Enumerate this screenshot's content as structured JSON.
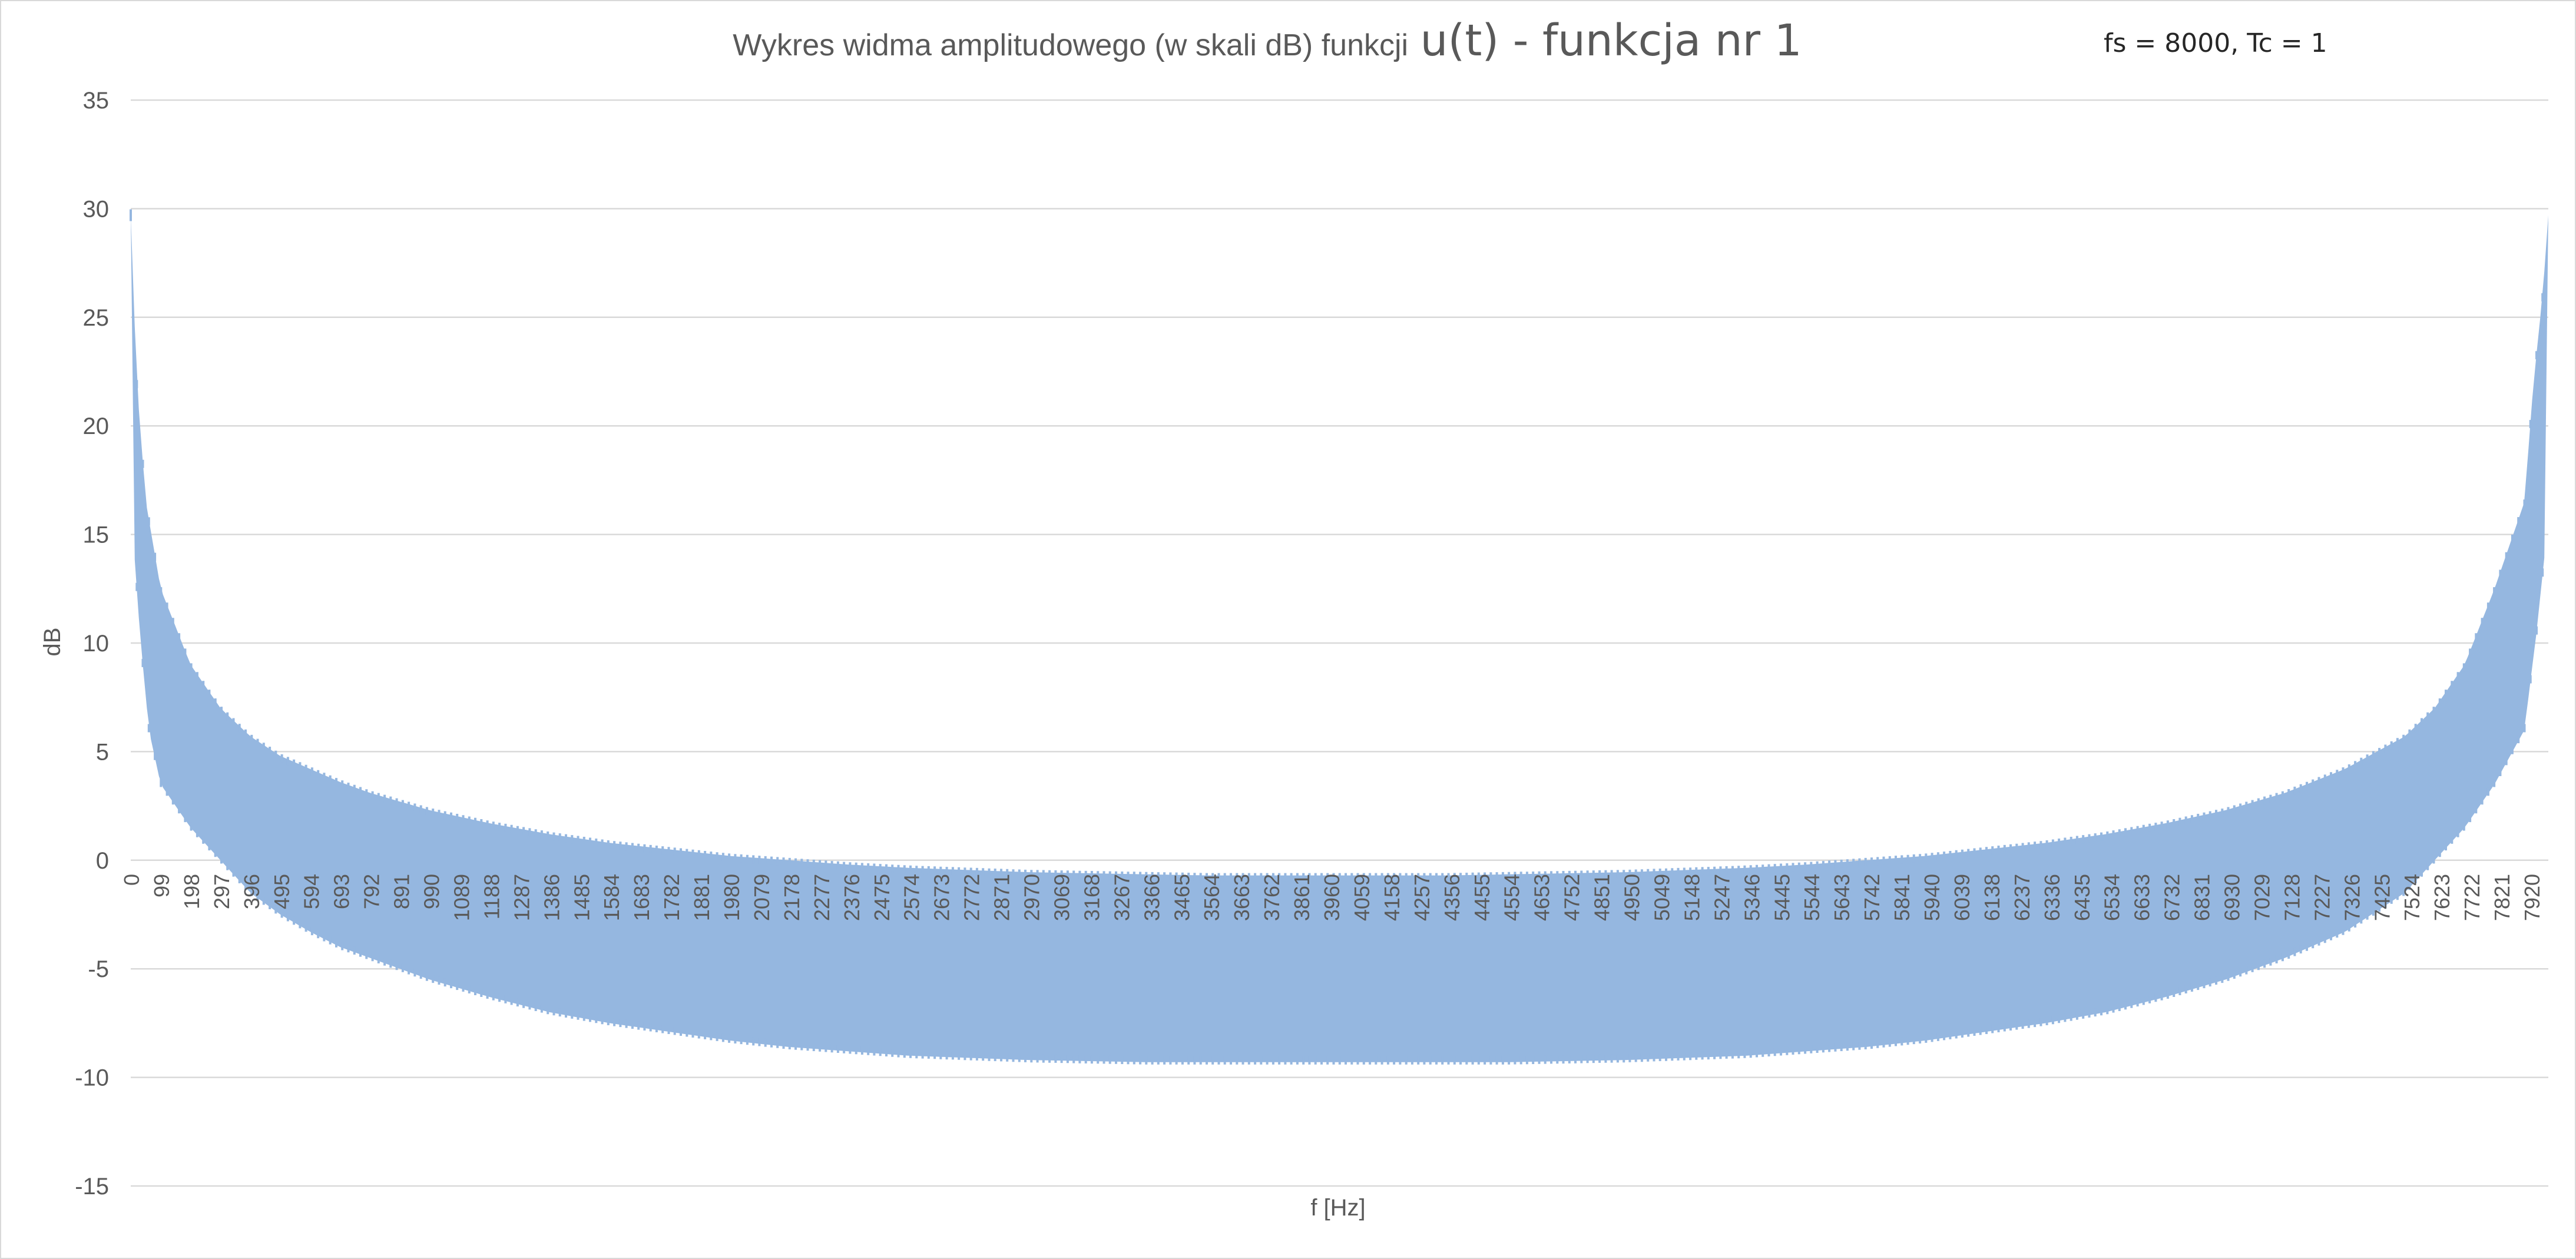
{
  "chart_data": {
    "type": "area",
    "title_part1": "Wykres widma amplitudowego (w skali dB) funkcji",
    "title_part2": "u(t) - funkcja nr 1",
    "annotation": "fs = 8000, Tc = 1",
    "xlabel": "f [Hz]",
    "ylabel": "dB",
    "ylim": [
      -15,
      35
    ],
    "yticks": [
      -15,
      -10,
      -5,
      0,
      5,
      10,
      15,
      20,
      25,
      30,
      35
    ],
    "xlim": [
      0,
      7999
    ],
    "x_tick_labels": [
      "0",
      "99",
      "198",
      "297",
      "396",
      "495",
      "594",
      "693",
      "792",
      "891",
      "990",
      "1089",
      "1188",
      "1287",
      "1386",
      "1485",
      "1584",
      "1683",
      "1782",
      "1881",
      "1980",
      "2079",
      "2178",
      "2277",
      "2376",
      "2475",
      "2574",
      "2673",
      "2772",
      "2871",
      "2970",
      "3069",
      "3168",
      "3267",
      "3366",
      "3465",
      "3564",
      "3663",
      "3762",
      "3861",
      "3960",
      "4059",
      "4158",
      "4257",
      "4356",
      "4455",
      "4554",
      "4653",
      "4752",
      "4851",
      "4950",
      "5049",
      "5148",
      "5247",
      "5346",
      "5445",
      "5544",
      "5643",
      "5742",
      "5841",
      "5940",
      "6039",
      "6138",
      "6237",
      "6336",
      "6435",
      "6534",
      "6633",
      "6732",
      "6831",
      "6930",
      "7029",
      "7128",
      "7227",
      "7326",
      "7425",
      "7524",
      "7623",
      "7722",
      "7821",
      "7920"
    ],
    "grid": true,
    "series": [
      {
        "color": "#95b7e0",
        "description_envelope": true,
        "upper_envelope": {
          "x": [
            0,
            20,
            50,
            99,
            198,
            297,
            396,
            495,
            594,
            693,
            792,
            891,
            990,
            1188,
            1386,
            1584,
            1782,
            1980,
            2178,
            2376,
            2574,
            2772,
            2970,
            3168,
            3366,
            3564,
            3762,
            3960,
            4158,
            4356,
            4554,
            4752,
            4950,
            5148,
            5346,
            5544,
            5742,
            5940,
            6138,
            6336,
            6534,
            6732,
            6930,
            7128,
            7326,
            7524,
            7623,
            7722,
            7821,
            7920,
            7950,
            7980,
            7999
          ],
          "y": [
            29.7,
            22,
            16.5,
            12.5,
            9,
            7,
            5.7,
            4.8,
            4.2,
            3.6,
            3.1,
            2.7,
            2.3,
            1.7,
            1.2,
            0.8,
            0.5,
            0.2,
            0,
            -0.2,
            -0.35,
            -0.45,
            -0.55,
            -0.6,
            -0.65,
            -0.7,
            -0.7,
            -0.7,
            -0.7,
            -0.7,
            -0.65,
            -0.6,
            -0.55,
            -0.45,
            -0.35,
            -0.2,
            0,
            0.2,
            0.5,
            0.8,
            1.2,
            1.7,
            2.3,
            3.1,
            4.2,
            5.7,
            7,
            9,
            12.5,
            16.5,
            22,
            26,
            29.7
          ]
        },
        "lower_envelope": {
          "x": [
            0,
            10,
            30,
            60,
            99,
            198,
            297,
            396,
            495,
            594,
            693,
            792,
            891,
            990,
            1188,
            1386,
            1584,
            1782,
            1980,
            2178,
            2376,
            2574,
            2772,
            2970,
            3168,
            3366,
            3564,
            3762,
            3960,
            4158,
            4356,
            4554,
            4752,
            4950,
            5148,
            5346,
            5544,
            5742,
            5940,
            6138,
            6336,
            6534,
            6732,
            6930,
            7128,
            7326,
            7524,
            7623,
            7722,
            7821,
            7920,
            7960,
            7990,
            7999
          ],
          "y": [
            29.7,
            14.5,
            10.5,
            6,
            3.5,
            1.5,
            0,
            -1.5,
            -2.5,
            -3.3,
            -4,
            -4.5,
            -5,
            -5.5,
            -6.3,
            -7,
            -7.5,
            -7.9,
            -8.3,
            -8.6,
            -8.8,
            -9,
            -9.1,
            -9.2,
            -9.25,
            -9.3,
            -9.3,
            -9.3,
            -9.3,
            -9.3,
            -9.3,
            -9.3,
            -9.25,
            -9.2,
            -9.1,
            -9,
            -8.8,
            -8.6,
            -8.3,
            -7.9,
            -7.5,
            -7,
            -6.3,
            -5.5,
            -4.5,
            -3.3,
            -1.5,
            0,
            1.5,
            3.5,
            6,
            10.5,
            14.5,
            29.7
          ]
        },
        "spike_period_hz": 20
      }
    ]
  }
}
